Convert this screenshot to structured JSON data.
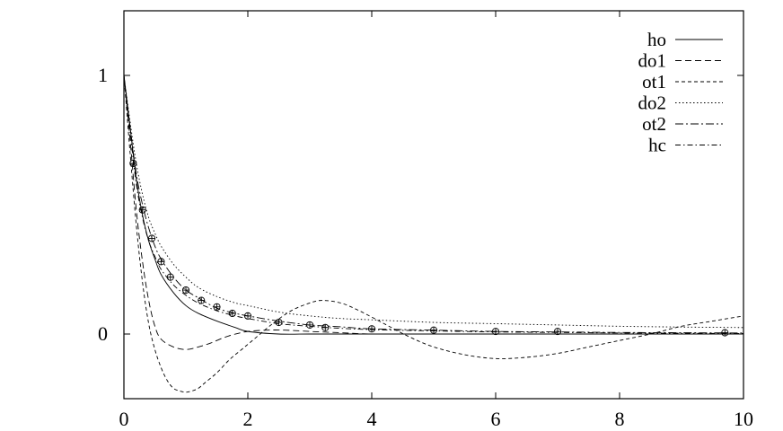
{
  "chart_data": {
    "type": "line",
    "title": "",
    "xlabel": "",
    "ylabel": "",
    "xlim": [
      0,
      10
    ],
    "ylim": [
      -0.25,
      1.25
    ],
    "x_ticks": [
      0,
      2,
      4,
      6,
      8,
      10
    ],
    "x_tick_labels": [
      "0",
      "2",
      "4",
      "6",
      "8",
      "10"
    ],
    "y_ticks": [
      0,
      1
    ],
    "y_tick_labels": [
      "0",
      "1"
    ],
    "grid": false,
    "legend_position": "top-right",
    "series": [
      {
        "name": "ho",
        "style": "solid",
        "x": [
          0,
          0.1,
          0.2,
          0.3,
          0.4,
          0.5,
          0.6,
          0.8,
          1.0,
          1.2,
          1.5,
          1.8,
          2.0,
          2.5,
          3.0,
          3.5,
          4,
          5,
          6,
          7,
          8,
          9,
          10
        ],
        "y": [
          1.0,
          0.8,
          0.6,
          0.46,
          0.36,
          0.29,
          0.23,
          0.16,
          0.11,
          0.08,
          0.05,
          0.025,
          0.01,
          0.0,
          0.0,
          0.0,
          0.0,
          0.0,
          0.0,
          0.0,
          0.0,
          0.0,
          0.0
        ]
      },
      {
        "name": "do1",
        "style": "dashed",
        "x": [
          0,
          0.1,
          0.2,
          0.3,
          0.4,
          0.5,
          0.6,
          0.8,
          1.0,
          1.2,
          1.4,
          1.6,
          1.8,
          2.0,
          2.3,
          2.6,
          3.0,
          3.5,
          4,
          5,
          6,
          7,
          8,
          9,
          10
        ],
        "y": [
          1.0,
          0.75,
          0.48,
          0.28,
          0.13,
          0.03,
          -0.02,
          -0.05,
          -0.06,
          -0.05,
          -0.035,
          -0.015,
          0.0,
          0.01,
          0.015,
          0.015,
          0.01,
          0.005,
          0.0,
          0.0,
          0.0,
          0.0,
          0.0,
          0.0,
          0.0
        ]
      },
      {
        "name": "ot1",
        "style": "short-dashed",
        "x": [
          0,
          0.1,
          0.2,
          0.3,
          0.4,
          0.5,
          0.6,
          0.7,
          0.8,
          0.9,
          1.0,
          1.1,
          1.2,
          1.3,
          1.5,
          1.7,
          1.9,
          2.1,
          2.4,
          2.7,
          3.0,
          3.2,
          3.5,
          3.8,
          4.2,
          4.6,
          5.0,
          5.5,
          6.0,
          6.5,
          7.0,
          7.5,
          8.0,
          8.5,
          9.0,
          9.5,
          10
        ],
        "y": [
          1.0,
          0.7,
          0.42,
          0.2,
          0.04,
          -0.06,
          -0.13,
          -0.18,
          -0.21,
          -0.22,
          -0.225,
          -0.22,
          -0.21,
          -0.19,
          -0.15,
          -0.1,
          -0.06,
          -0.02,
          0.04,
          0.09,
          0.12,
          0.13,
          0.12,
          0.09,
          0.04,
          -0.01,
          -0.05,
          -0.08,
          -0.095,
          -0.09,
          -0.075,
          -0.05,
          -0.025,
          0.0,
          0.03,
          0.05,
          0.07
        ]
      },
      {
        "name": "do2",
        "style": "dotted",
        "x": [
          0,
          0.1,
          0.2,
          0.3,
          0.4,
          0.5,
          0.6,
          0.8,
          1.0,
          1.2,
          1.5,
          1.8,
          2.0,
          2.5,
          3.0,
          3.5,
          4,
          5,
          6,
          7,
          8,
          9,
          10
        ],
        "y": [
          1.0,
          0.82,
          0.66,
          0.54,
          0.45,
          0.39,
          0.34,
          0.27,
          0.22,
          0.18,
          0.145,
          0.12,
          0.11,
          0.085,
          0.07,
          0.06,
          0.055,
          0.045,
          0.04,
          0.035,
          0.03,
          0.027,
          0.025
        ]
      },
      {
        "name": "ot2",
        "style": "dash-dot",
        "x": [
          0,
          0.1,
          0.2,
          0.3,
          0.4,
          0.5,
          0.6,
          0.8,
          1.0,
          1.2,
          1.5,
          1.8,
          2.0,
          2.5,
          3.0,
          3.5,
          4,
          5,
          6,
          7,
          8,
          9,
          10
        ],
        "y": [
          1.0,
          0.8,
          0.62,
          0.5,
          0.41,
          0.34,
          0.29,
          0.22,
          0.17,
          0.14,
          0.1,
          0.08,
          0.07,
          0.05,
          0.035,
          0.028,
          0.02,
          0.015,
          0.01,
          0.008,
          0.006,
          0.005,
          0.004
        ]
      },
      {
        "name": "hc",
        "style": "dash-dot-fine",
        "x": [
          0,
          0.1,
          0.2,
          0.3,
          0.4,
          0.5,
          0.6,
          0.8,
          1.0,
          1.2,
          1.5,
          1.8,
          2.0,
          2.5,
          3.0,
          3.5,
          4,
          5,
          6,
          7,
          8,
          9,
          10
        ],
        "y": [
          1.0,
          0.78,
          0.58,
          0.45,
          0.36,
          0.3,
          0.25,
          0.19,
          0.15,
          0.12,
          0.09,
          0.07,
          0.06,
          0.04,
          0.03,
          0.022,
          0.017,
          0.012,
          0.008,
          0.006,
          0.004,
          0.003,
          0.002
        ]
      }
    ],
    "markers": {
      "x": [
        0.15,
        0.3,
        0.45,
        0.6,
        0.75,
        1.0,
        1.25,
        1.5,
        1.75,
        2.0,
        2.5,
        3.0,
        3.25,
        4.0,
        5.0,
        6.0,
        7.0,
        9.7
      ],
      "y": [
        0.66,
        0.48,
        0.37,
        0.28,
        0.22,
        0.17,
        0.13,
        0.105,
        0.08,
        0.07,
        0.045,
        0.035,
        0.025,
        0.02,
        0.015,
        0.01,
        0.01,
        0.005
      ]
    }
  }
}
